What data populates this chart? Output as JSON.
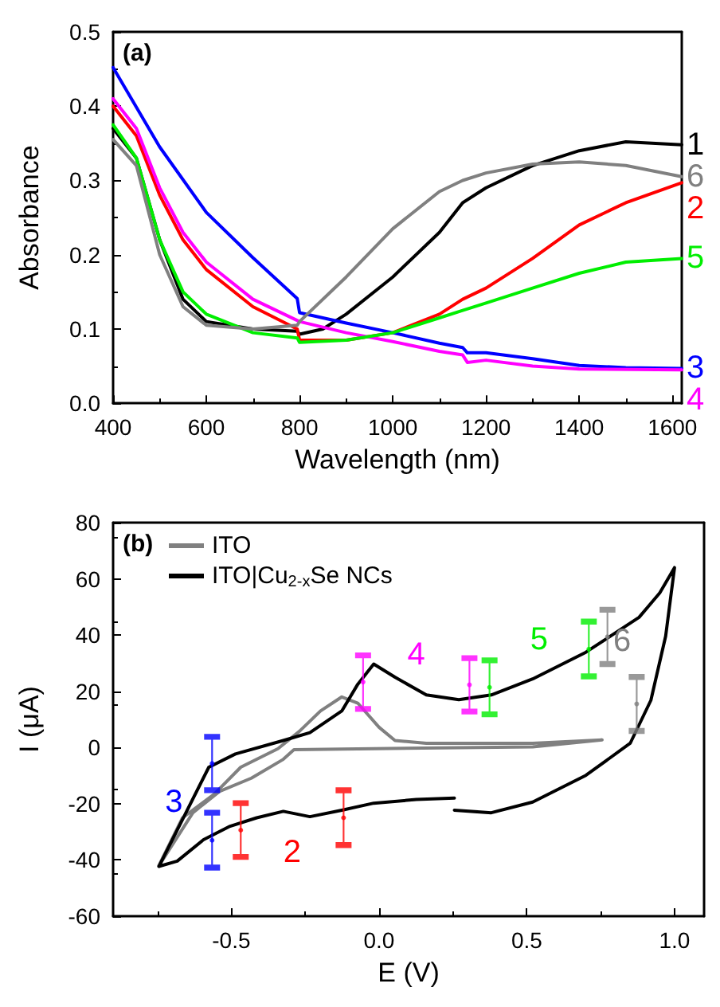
{
  "chart_data": [
    {
      "type": "line",
      "xlabel": "Wavelength (nm)",
      "ylabel": "Absorbance",
      "xlim": [
        400,
        1620
      ],
      "ylim": [
        0,
        0.5
      ],
      "xticks": [
        400,
        600,
        800,
        1000,
        1200,
        1400,
        1600
      ],
      "yticks": [
        {
          "value": 0,
          "label": "0.0"
        },
        0.1,
        0.2,
        0.3,
        0.4,
        0.5
      ],
      "grid": false,
      "legend": false,
      "marker": "none",
      "line_style": "solid",
      "annotations": [
        "(a)"
      ],
      "series": [
        {
          "name": "1",
          "color": "#000000",
          "x": [
            400,
            450,
            500,
            550,
            600,
            700,
            795,
            800,
            850,
            900,
            1000,
            1100,
            1150,
            1200,
            1300,
            1400,
            1500,
            1620
          ],
          "values": [
            0.37,
            0.33,
            0.22,
            0.14,
            0.11,
            0.1,
            0.097,
            0.093,
            0.1,
            0.12,
            0.17,
            0.23,
            0.27,
            0.29,
            0.32,
            0.34,
            0.352,
            0.348
          ]
        },
        {
          "name": "2",
          "color": "#ff0000",
          "x": [
            400,
            450,
            500,
            550,
            600,
            700,
            795,
            800,
            900,
            1000,
            1100,
            1150,
            1200,
            1300,
            1400,
            1500,
            1620
          ],
          "values": [
            0.4,
            0.36,
            0.28,
            0.22,
            0.18,
            0.13,
            0.1,
            0.085,
            0.085,
            0.095,
            0.12,
            0.14,
            0.155,
            0.195,
            0.24,
            0.27,
            0.297
          ]
        },
        {
          "name": "3",
          "color": "#0000ff",
          "x": [
            400,
            500,
            600,
            700,
            795,
            800,
            900,
            1000,
            1100,
            1150,
            1160,
            1200,
            1300,
            1400,
            1500,
            1620
          ],
          "values": [
            0.452,
            0.345,
            0.257,
            0.196,
            0.141,
            0.122,
            0.108,
            0.095,
            0.081,
            0.075,
            0.068,
            0.068,
            0.06,
            0.051,
            0.048,
            0.047
          ]
        },
        {
          "name": "4",
          "color": "#ff00ff",
          "x": [
            400,
            450,
            500,
            550,
            600,
            700,
            800,
            900,
            1000,
            1100,
            1150,
            1160,
            1200,
            1300,
            1400,
            1620
          ],
          "values": [
            0.41,
            0.37,
            0.29,
            0.23,
            0.19,
            0.14,
            0.11,
            0.095,
            0.083,
            0.07,
            0.065,
            0.055,
            0.058,
            0.05,
            0.046,
            0.045
          ]
        },
        {
          "name": "5",
          "color": "#00ee00",
          "x": [
            400,
            450,
            500,
            550,
            600,
            700,
            795,
            800,
            900,
            1000,
            1100,
            1150,
            1200,
            1300,
            1400,
            1500,
            1620
          ],
          "values": [
            0.375,
            0.33,
            0.22,
            0.15,
            0.12,
            0.095,
            0.088,
            0.082,
            0.085,
            0.095,
            0.115,
            0.125,
            0.135,
            0.155,
            0.175,
            0.19,
            0.195
          ]
        },
        {
          "name": "6",
          "color": "#808080",
          "x": [
            400,
            450,
            500,
            550,
            600,
            700,
            795,
            800,
            900,
            1000,
            1100,
            1150,
            1200,
            1300,
            1400,
            1500,
            1620
          ],
          "values": [
            0.355,
            0.32,
            0.2,
            0.13,
            0.105,
            0.1,
            0.105,
            0.11,
            0.17,
            0.235,
            0.285,
            0.3,
            0.31,
            0.322,
            0.325,
            0.32,
            0.305
          ]
        }
      ]
    },
    {
      "type": "line",
      "xlabel": "E (V)",
      "ylabel": "I (μA)",
      "xlim": [
        -0.9,
        1.1
      ],
      "ylim": [
        -60,
        80
      ],
      "xticks": [
        -0.5,
        {
          "value": 0,
          "label": "0.0"
        },
        0.5,
        {
          "value": 1,
          "label": "1.0"
        }
      ],
      "yticks": [
        -60,
        -40,
        -20,
        0,
        20,
        40,
        60,
        80
      ],
      "grid": false,
      "legend": "top left",
      "marker": "none",
      "line_style": "solid",
      "annotations": [
        "(b)"
      ],
      "series": [
        {
          "name": "ITO",
          "color": "#808080",
          "x": [
            -0.745,
            -0.665,
            -0.558,
            -0.468,
            -0.342,
            -0.27,
            -0.198,
            -0.126,
            -0.072,
            0.0,
            0.054,
            0.16,
            0.52,
            0.755,
            0.52,
            -0.018,
            -0.288,
            -0.324,
            -0.432,
            -0.54,
            -0.63,
            -0.737
          ],
          "values": [
            -42,
            -25,
            -16.6,
            -7,
            -0.4,
            5.7,
            13,
            18,
            15.8,
            7.2,
            2.5,
            1.5,
            1.5,
            2.7,
            0.2,
            -0.4,
            -0.8,
            -4.2,
            -10.9,
            -15.6,
            -23.2,
            -40.8
          ]
        },
        {
          "name": "ITO|Cu$_{2-x}$Se NCs",
          "color": "#000000",
          "x": [
            -0.745,
            -0.576,
            -0.486,
            -0.324,
            -0.234,
            -0.126,
            -0.072,
            -0.018,
            0.054,
            0.16,
            0.27,
            0.38,
            0.52,
            0.7,
            0.88,
            0.95,
            1.0,
            0.97,
            0.92,
            0.85,
            0.7,
            0.52,
            0.38,
            0.255,
            null,
            0.255,
            0.126,
            -0.018,
            -0.126,
            -0.234,
            -0.324,
            -0.414,
            -0.504,
            -0.594,
            -0.683,
            -0.745
          ],
          "values": [
            -42.3,
            -7,
            -2.3,
            2.5,
            5.3,
            13,
            22.5,
            29.7,
            25,
            18.7,
            17,
            18.7,
            24.4,
            33.9,
            46.3,
            55,
            64,
            39.6,
            16.8,
            1.5,
            -9.9,
            -19.4,
            -23.2,
            -22.3,
            null,
            -18,
            -18.5,
            -19.8,
            -22.3,
            -24.6,
            -22.7,
            -25,
            -28,
            -32.8,
            -40.4,
            -42.3
          ]
        },
        {
          "name": "3",
          "type": "scatter",
          "color": "#0000ff",
          "x": [
            -0.565,
            -0.565
          ],
          "values": [
            -5.7,
            -33
          ],
          "errors": [
            [
              -15.2,
              3.8
            ],
            [
              -42.7,
              -23.2
            ]
          ]
        },
        {
          "name": "2",
          "type": "scatter",
          "color": "#ff0000",
          "x": [
            -0.468,
            -0.12
          ],
          "values": [
            -29.4,
            -25
          ],
          "errors": [
            [
              -38.9,
              -19.8
            ],
            [
              -34.7,
              -15.2
            ]
          ]
        },
        {
          "name": "4",
          "type": "scatter",
          "color": "#ff00ff",
          "x": [
            -0.054,
            0.306
          ],
          "values": [
            23.3,
            22.3
          ],
          "errors": [
            [
              13.7,
              32.8
            ],
            [
              12.8,
              31.8
            ]
          ]
        },
        {
          "name": "5",
          "type": "scatter",
          "color": "#00ee00",
          "x": [
            0.374,
            0.71
          ],
          "values": [
            21.4,
            35
          ],
          "errors": [
            [
              11.8,
              31
            ],
            [
              25.3,
              44.8
            ]
          ]
        },
        {
          "name": "6",
          "type": "scatter",
          "color": "#808080",
          "x": [
            0.773,
            0.872
          ],
          "values": [
            39.4,
            15.5
          ],
          "errors": [
            [
              29.7,
              49
            ],
            [
              5.9,
              25.1
            ]
          ]
        }
      ]
    }
  ]
}
